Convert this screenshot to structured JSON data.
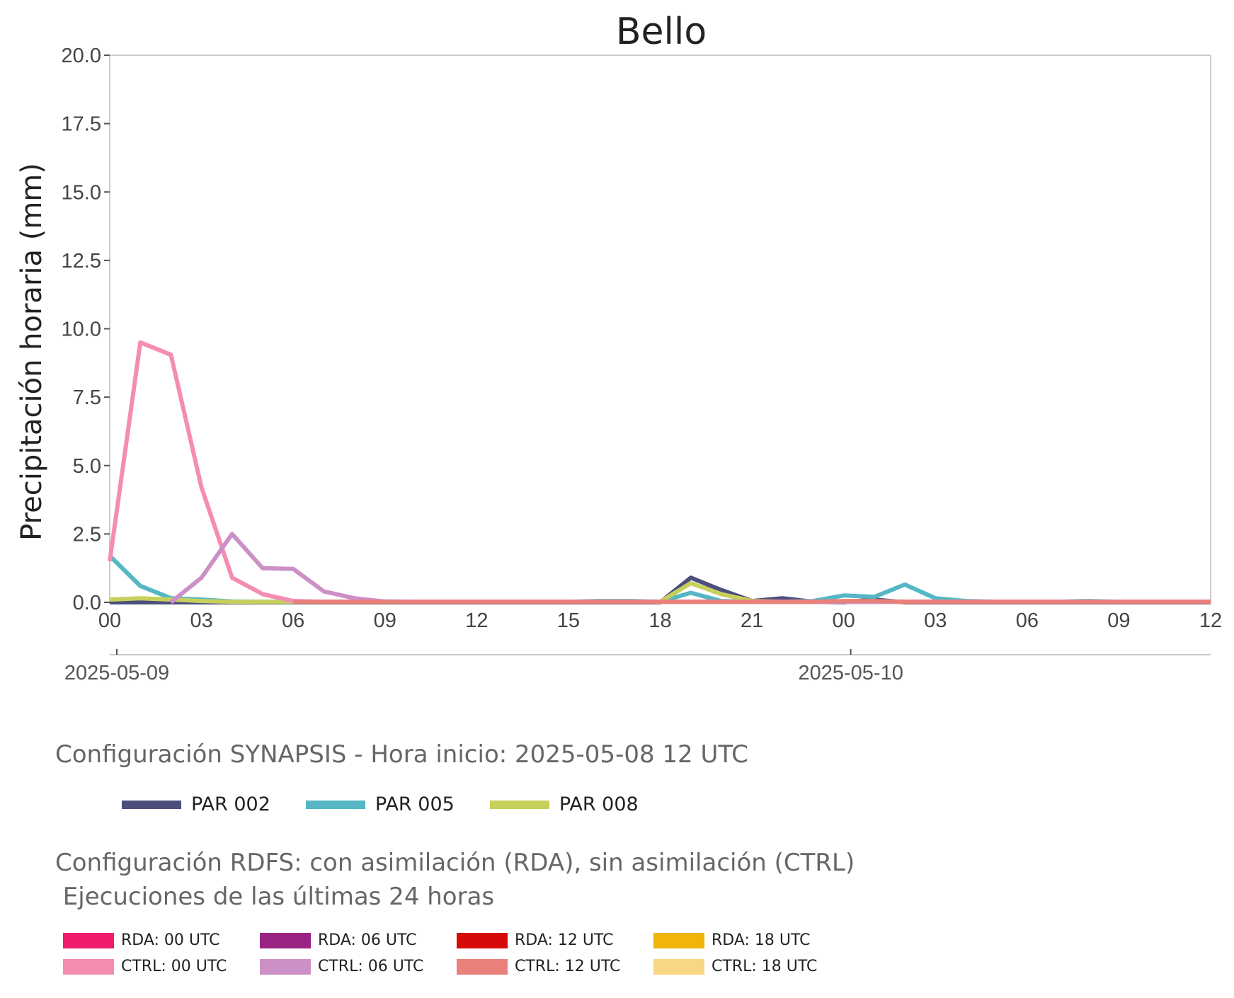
{
  "chart_data": {
    "type": "line",
    "title": "Bello",
    "ylabel": "Precipitación horaria (mm)",
    "xlabel": "",
    "ylim": [
      0,
      20
    ],
    "yticks": [
      "0.0",
      "2.5",
      "5.0",
      "7.5",
      "10.0",
      "12.5",
      "15.0",
      "17.5",
      "20.0"
    ],
    "x_start": "2025-05-09 00 UTC",
    "x_end": "2025-05-10 12 UTC",
    "x_hours": [
      0,
      1,
      2,
      3,
      4,
      5,
      6,
      7,
      8,
      9,
      10,
      11,
      12,
      13,
      14,
      15,
      16,
      17,
      18,
      19,
      20,
      21,
      22,
      23,
      24,
      25,
      26,
      27,
      28,
      29,
      30,
      31,
      32,
      33,
      34,
      35,
      36
    ],
    "xticks": [
      {
        "hour": 0,
        "label": "00"
      },
      {
        "hour": 3,
        "label": "03"
      },
      {
        "hour": 6,
        "label": "06"
      },
      {
        "hour": 9,
        "label": "09"
      },
      {
        "hour": 12,
        "label": "12"
      },
      {
        "hour": 15,
        "label": "15"
      },
      {
        "hour": 18,
        "label": "18"
      },
      {
        "hour": 21,
        "label": "21"
      },
      {
        "hour": 24,
        "label": "00"
      },
      {
        "hour": 27,
        "label": "03"
      },
      {
        "hour": 30,
        "label": "06"
      },
      {
        "hour": 33,
        "label": "09"
      },
      {
        "hour": 36,
        "label": "12"
      }
    ],
    "date_ticks": [
      {
        "hour": 0,
        "label": "2025-05-09"
      },
      {
        "hour": 24,
        "label": "2025-05-10"
      }
    ],
    "grid": false,
    "series": [
      {
        "name": "PAR 002",
        "color": "#4c4f7c",
        "values": [
          0,
          0,
          0,
          0,
          0,
          0,
          0,
          0,
          0,
          0,
          0,
          0,
          0,
          0,
          0,
          0,
          0,
          0,
          0,
          0.9,
          0.45,
          0.05,
          0.15,
          0.02,
          0,
          0.1,
          0,
          0,
          0,
          0,
          0,
          0,
          0,
          0,
          0,
          0,
          0
        ]
      },
      {
        "name": "PAR 005",
        "color": "#55b7c4",
        "values": [
          1.7,
          0.6,
          0.15,
          0.1,
          0.03,
          0.02,
          0.02,
          0.02,
          0.02,
          0.02,
          0.02,
          0.02,
          0.02,
          0.02,
          0.02,
          0.02,
          0.05,
          0.05,
          0.02,
          0.35,
          0.05,
          0.02,
          0.02,
          0.05,
          0.25,
          0.2,
          0.65,
          0.15,
          0.05,
          0.02,
          0.02,
          0.02,
          0.05,
          0.02,
          0.02,
          0.02,
          0.02
        ]
      },
      {
        "name": "PAR 008",
        "color": "#c8d05c",
        "values": [
          0.1,
          0.15,
          0.1,
          0.05,
          0.02,
          0.02,
          0.02,
          0.02,
          0.02,
          0.02,
          0.02,
          0.02,
          0.02,
          0.02,
          0.02,
          0.02,
          0.02,
          0.02,
          0.02,
          0.7,
          0.3,
          0.05,
          0.02,
          0.02,
          0.02,
          0.02,
          0.02,
          0.02,
          0.02,
          0.02,
          0.02,
          0.02,
          0.02,
          0.02,
          0.02,
          0.02,
          0.02
        ]
      },
      {
        "name": "CTRL: 00 UTC",
        "color": "#f58cb2",
        "values": [
          1.5,
          9.5,
          9.05,
          4.2,
          0.9,
          0.3,
          0.05,
          0.02,
          0.02,
          0.02,
          0.02,
          0.02,
          0.02,
          0.02,
          0.02,
          0.02,
          0.02,
          0.02,
          0.02,
          0.02,
          0.02,
          0.02,
          0.02,
          0.02,
          0.02,
          0.02,
          0.02,
          0.02,
          0.02,
          0.02,
          0.02,
          0.02,
          0.02,
          0.02,
          0.02,
          0.02,
          0.02
        ]
      },
      {
        "name": "CTRL: 06 UTC",
        "color": "#cd90c6",
        "values": [
          null,
          null,
          0,
          0.9,
          2.5,
          1.25,
          1.22,
          0.4,
          0.15,
          0.03,
          0.02,
          0.02,
          0.02,
          0.02,
          0.02,
          0.02,
          0.02,
          0.02,
          0.02,
          0.02,
          0.02,
          0.02,
          0.02,
          0.02,
          0.02,
          0.02,
          0.02,
          0.02,
          0.02,
          0.02,
          0.02,
          0.02,
          0.02,
          0.02,
          0.02,
          0.02,
          0.02
        ]
      },
      {
        "name": "CTRL: 12 UTC",
        "color": "#e9807a",
        "values": [
          null,
          null,
          null,
          null,
          null,
          null,
          0.02,
          0.02,
          0.02,
          0.02,
          0.02,
          0.02,
          0.02,
          0.02,
          0.02,
          0.02,
          0.02,
          0.02,
          0.02,
          0.02,
          0.02,
          0.02,
          0.02,
          0.02,
          0.05,
          0.05,
          0.02,
          0.02,
          0.02,
          0.02,
          0.02,
          0.02,
          0.02,
          0.02,
          0.02,
          0.02,
          0.02
        ]
      }
    ]
  },
  "synapsis": {
    "caption": "Configuración SYNAPSIS - Hora inicio: 2025-05-08 12 UTC",
    "legend": [
      {
        "label": "PAR 002",
        "color": "#4c4f7c"
      },
      {
        "label": "PAR 005",
        "color": "#55b7c4"
      },
      {
        "label": "PAR 008",
        "color": "#c8d05c"
      }
    ]
  },
  "rdfs": {
    "caption_line1": "Configuración RDFS: con asimilación (RDA), sin asimilación (CTRL)",
    "caption_line2": " Ejecuciones de las últimas 24 horas",
    "legend": [
      {
        "label": "RDA: 00 UTC",
        "color": "#ee1c6a"
      },
      {
        "label": "RDA: 06 UTC",
        "color": "#9a2484"
      },
      {
        "label": "RDA: 12 UTC",
        "color": "#d70a0a"
      },
      {
        "label": "RDA: 18 UTC",
        "color": "#f0b40a"
      },
      {
        "label": "CTRL: 00 UTC",
        "color": "#f58cb2"
      },
      {
        "label": "CTRL: 06 UTC",
        "color": "#cd90c6"
      },
      {
        "label": "CTRL: 12 UTC",
        "color": "#e9807a"
      },
      {
        "label": "CTRL: 18 UTC",
        "color": "#f8d683"
      }
    ]
  }
}
